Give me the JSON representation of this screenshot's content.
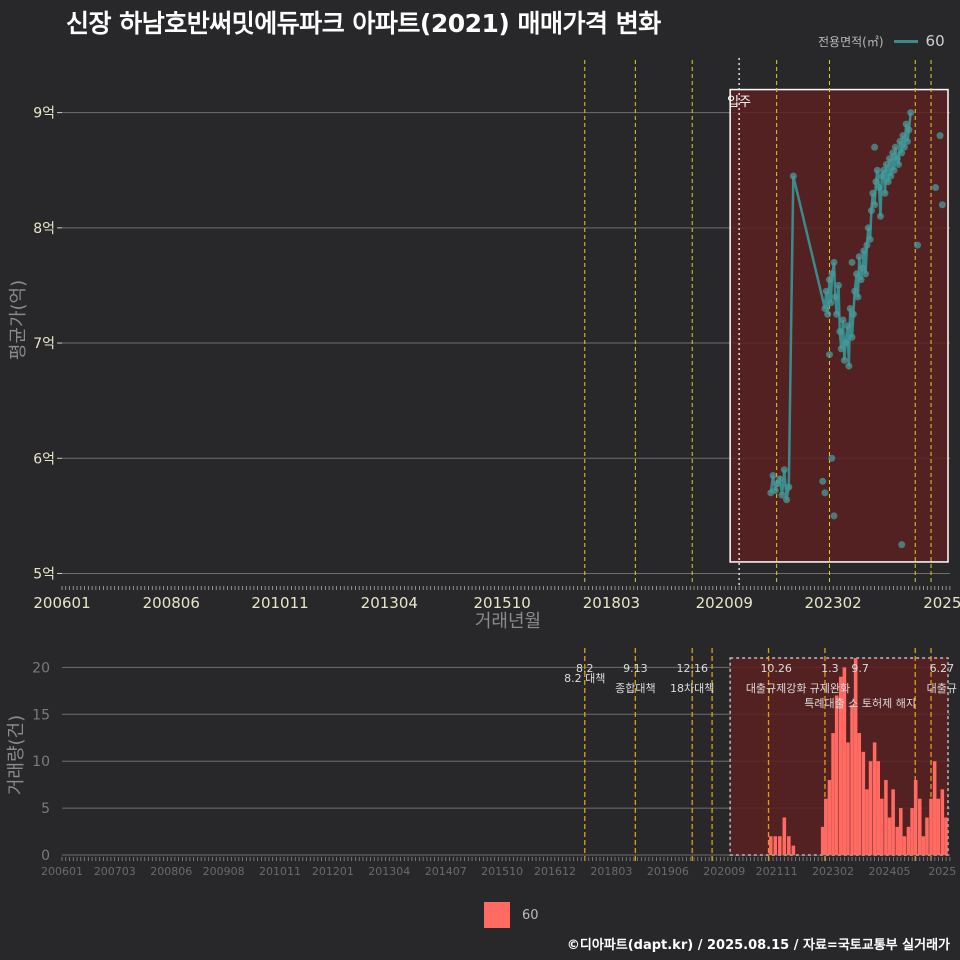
{
  "title": "신장 하남호반써밋에듀파크 아파트(2021) 매매가격 변화",
  "footer": "©디아파트(dapt.kr) / 2025.08.15 / 자료=국토교통부 실거래가",
  "legend": {
    "title": "전용면적(㎡)",
    "series_name": "60"
  },
  "colors": {
    "line": "#3a8c8c",
    "point": "#4a9a9a",
    "bar": "#ff6a62",
    "highlight": "#5a2020"
  },
  "chart_data": [
    {
      "type": "line",
      "title": "신장 하남호반써밋에듀파크 아파트(2021) 매매가격 변화",
      "xlabel": "거래년월",
      "ylabel": "평균가(억)",
      "x_range": [
        2006.0,
        2025.67
      ],
      "y_range": [
        4.9,
        9.5
      ],
      "x_ticks": [
        {
          "label": "200601",
          "t": 2006.0
        },
        {
          "label": "200806",
          "t": 2008.42
        },
        {
          "label": "201011",
          "t": 2010.83
        },
        {
          "label": "201304",
          "t": 2013.25
        },
        {
          "label": "201510",
          "t": 2015.75
        },
        {
          "label": "201803",
          "t": 2018.17
        },
        {
          "label": "202009",
          "t": 2020.67
        },
        {
          "label": "202302",
          "t": 2023.08
        },
        {
          "label": "2025",
          "t": 2025.5
        }
      ],
      "y_ticks": [
        {
          "label": "5억",
          "v": 5
        },
        {
          "label": "6억",
          "v": 6
        },
        {
          "label": "7억",
          "v": 7
        },
        {
          "label": "8억",
          "v": 8
        },
        {
          "label": "9억",
          "v": 9
        }
      ],
      "policy_lines": [
        2017.58,
        2018.7,
        2019.96,
        2021.83,
        2023.0,
        2024.9,
        2025.25
      ],
      "move_in_line": 2021.0,
      "move_in_label": "입주",
      "highlight_range": {
        "x": [
          2020.8,
          2025.67
        ],
        "y": [
          5.1,
          9.2
        ]
      },
      "series": [
        {
          "name": "60",
          "points": [
            [
              2021.7,
              5.7
            ],
            [
              2021.75,
              5.85
            ],
            [
              2021.8,
              5.72
            ],
            [
              2021.85,
              5.78
            ],
            [
              2021.9,
              5.82
            ],
            [
              2021.95,
              5.68
            ],
            [
              2022.0,
              5.9
            ],
            [
              2022.05,
              5.64
            ],
            [
              2022.1,
              5.75
            ],
            [
              2022.2,
              8.45
            ],
            [
              2022.9,
              7.3
            ],
            [
              2022.93,
              7.45
            ],
            [
              2022.96,
              7.25
            ],
            [
              2023.0,
              7.55
            ],
            [
              2023.03,
              7.35
            ],
            [
              2023.06,
              7.6
            ],
            [
              2023.1,
              7.7
            ],
            [
              2023.13,
              7.4
            ],
            [
              2023.16,
              7.25
            ],
            [
              2023.2,
              7.5
            ],
            [
              2023.23,
              7.1
            ],
            [
              2023.26,
              6.95
            ],
            [
              2023.3,
              7.2
            ],
            [
              2023.33,
              6.85
            ],
            [
              2023.36,
              7.0
            ],
            [
              2023.4,
              7.15
            ],
            [
              2023.43,
              6.8
            ],
            [
              2023.46,
              7.3
            ],
            [
              2023.5,
              7.05
            ],
            [
              2023.53,
              7.25
            ],
            [
              2023.56,
              7.45
            ],
            [
              2023.6,
              7.6
            ],
            [
              2023.63,
              7.4
            ],
            [
              2023.66,
              7.75
            ],
            [
              2023.7,
              7.55
            ],
            [
              2023.73,
              7.65
            ],
            [
              2023.76,
              7.8
            ],
            [
              2023.8,
              7.6
            ],
            [
              2023.83,
              7.85
            ],
            [
              2023.86,
              8.0
            ],
            [
              2023.9,
              7.9
            ],
            [
              2023.93,
              8.15
            ],
            [
              2023.96,
              8.3
            ],
            [
              2024.0,
              8.2
            ],
            [
              2024.03,
              8.4
            ],
            [
              2024.06,
              8.5
            ],
            [
              2024.1,
              8.35
            ],
            [
              2024.13,
              8.1
            ],
            [
              2024.16,
              8.45
            ],
            [
              2024.2,
              8.5
            ],
            [
              2024.23,
              8.3
            ],
            [
              2024.26,
              8.55
            ],
            [
              2024.3,
              8.4
            ],
            [
              2024.33,
              8.6
            ],
            [
              2024.36,
              8.45
            ],
            [
              2024.4,
              8.65
            ],
            [
              2024.43,
              8.5
            ],
            [
              2024.46,
              8.7
            ],
            [
              2024.5,
              8.6
            ],
            [
              2024.53,
              8.55
            ],
            [
              2024.56,
              8.75
            ],
            [
              2024.6,
              8.65
            ],
            [
              2024.63,
              8.8
            ],
            [
              2024.66,
              8.7
            ],
            [
              2024.7,
              8.9
            ],
            [
              2024.73,
              8.75
            ],
            [
              2024.76,
              8.85
            ],
            [
              2024.8,
              9.0
            ]
          ],
          "scatter": [
            [
              2022.85,
              5.8
            ],
            [
              2022.9,
              5.7
            ],
            [
              2023.05,
              6.0
            ],
            [
              2023.1,
              5.5
            ],
            [
              2024.0,
              8.7
            ],
            [
              2024.6,
              5.25
            ],
            [
              2024.95,
              7.85
            ],
            [
              2025.35,
              8.35
            ],
            [
              2025.45,
              8.8
            ],
            [
              2025.5,
              8.2
            ],
            [
              2023.0,
              6.9
            ],
            [
              2023.5,
              7.7
            ]
          ]
        }
      ]
    },
    {
      "type": "bar",
      "ylabel": "거래량(건)",
      "x_range": [
        2006.0,
        2025.67
      ],
      "y_range": [
        0,
        21
      ],
      "x_ticks": [
        {
          "label": "200601",
          "t": 2006.0
        },
        {
          "label": "200703",
          "t": 2007.17
        },
        {
          "label": "200806",
          "t": 2008.42
        },
        {
          "label": "200908",
          "t": 2009.58
        },
        {
          "label": "201011",
          "t": 2010.83
        },
        {
          "label": "201201",
          "t": 2012.0
        },
        {
          "label": "201304",
          "t": 2013.25
        },
        {
          "label": "201407",
          "t": 2014.5
        },
        {
          "label": "201510",
          "t": 2015.75
        },
        {
          "label": "201612",
          "t": 2016.92
        },
        {
          "label": "201803",
          "t": 2018.17
        },
        {
          "label": "201906",
          "t": 2019.42
        },
        {
          "label": "202009",
          "t": 2020.67
        },
        {
          "label": "202111",
          "t": 2021.83
        },
        {
          "label": "202302",
          "t": 2023.08
        },
        {
          "label": "202405",
          "t": 2024.33
        },
        {
          "label": "2025",
          "t": 2025.5
        }
      ],
      "y_ticks": [
        0,
        5,
        10,
        15,
        20
      ],
      "policy_lines": [
        2017.58,
        2018.7,
        2019.96,
        2020.4,
        2021.65,
        2022.9,
        2024.9,
        2025.25
      ],
      "policy_labels": [
        {
          "t": 2017.58,
          "date": "8.2",
          "text": "8.2 대책"
        },
        {
          "t": 2018.7,
          "date": "9.13",
          "text": "종합대책"
        },
        {
          "t": 2019.96,
          "date": "12.16",
          "text": "18차대책"
        },
        {
          "t": 2021.82,
          "date": "10.26",
          "text": "대출규제강화"
        },
        {
          "t": 2023.01,
          "date": "1.3",
          "text": "규제완화"
        },
        {
          "t": 2023.68,
          "date": "9.7",
          "text": "특례대출 소 토허제 해지"
        },
        {
          "t": 2025.49,
          "date": "6.27",
          "text": "대출규"
        }
      ],
      "highlight_range": {
        "x": [
          2020.8,
          2025.67
        ],
        "y": [
          0,
          21
        ]
      },
      "bars": [
        [
          2021.7,
          2
        ],
        [
          2021.8,
          2
        ],
        [
          2021.9,
          2
        ],
        [
          2022.0,
          4
        ],
        [
          2022.1,
          2
        ],
        [
          2022.2,
          1
        ],
        [
          2022.85,
          3
        ],
        [
          2022.92,
          6
        ],
        [
          2023.0,
          8
        ],
        [
          2023.08,
          13
        ],
        [
          2023.16,
          17
        ],
        [
          2023.25,
          19
        ],
        [
          2023.33,
          20
        ],
        [
          2023.41,
          12
        ],
        [
          2023.5,
          16
        ],
        [
          2023.58,
          21
        ],
        [
          2023.66,
          13
        ],
        [
          2023.75,
          11
        ],
        [
          2023.83,
          7
        ],
        [
          2023.91,
          10
        ],
        [
          2024.0,
          12
        ],
        [
          2024.08,
          10
        ],
        [
          2024.16,
          6
        ],
        [
          2024.25,
          8
        ],
        [
          2024.33,
          4
        ],
        [
          2024.41,
          7
        ],
        [
          2024.5,
          3
        ],
        [
          2024.58,
          5
        ],
        [
          2024.66,
          2
        ],
        [
          2024.75,
          3
        ],
        [
          2024.83,
          5
        ],
        [
          2024.91,
          8
        ],
        [
          2025.0,
          6
        ],
        [
          2025.08,
          2
        ],
        [
          2025.16,
          4
        ],
        [
          2025.25,
          6
        ],
        [
          2025.33,
          10
        ],
        [
          2025.41,
          6
        ],
        [
          2025.5,
          7
        ],
        [
          2025.58,
          4
        ]
      ]
    }
  ]
}
